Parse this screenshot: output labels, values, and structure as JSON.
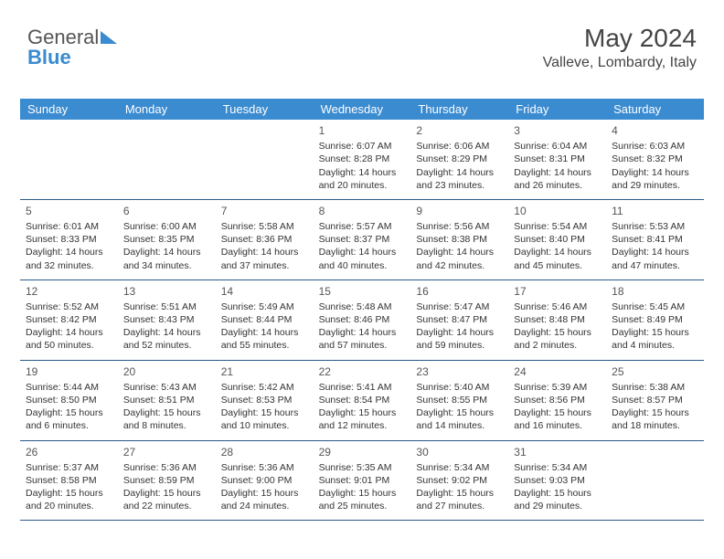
{
  "logo": {
    "text1": "General",
    "text2": "Blue"
  },
  "header": {
    "month": "May 2024",
    "location": "Valleve, Lombardy, Italy"
  },
  "dayNames": [
    "Sunday",
    "Monday",
    "Tuesday",
    "Wednesday",
    "Thursday",
    "Friday",
    "Saturday"
  ],
  "colors": {
    "headerBg": "#3a8bd0",
    "rowBorder": "#2a5a8a"
  },
  "weeks": [
    [
      null,
      null,
      null,
      {
        "n": "1",
        "sr": "6:07 AM",
        "ss": "8:28 PM",
        "dl": "14 hours and 20 minutes."
      },
      {
        "n": "2",
        "sr": "6:06 AM",
        "ss": "8:29 PM",
        "dl": "14 hours and 23 minutes."
      },
      {
        "n": "3",
        "sr": "6:04 AM",
        "ss": "8:31 PM",
        "dl": "14 hours and 26 minutes."
      },
      {
        "n": "4",
        "sr": "6:03 AM",
        "ss": "8:32 PM",
        "dl": "14 hours and 29 minutes."
      }
    ],
    [
      {
        "n": "5",
        "sr": "6:01 AM",
        "ss": "8:33 PM",
        "dl": "14 hours and 32 minutes."
      },
      {
        "n": "6",
        "sr": "6:00 AM",
        "ss": "8:35 PM",
        "dl": "14 hours and 34 minutes."
      },
      {
        "n": "7",
        "sr": "5:58 AM",
        "ss": "8:36 PM",
        "dl": "14 hours and 37 minutes."
      },
      {
        "n": "8",
        "sr": "5:57 AM",
        "ss": "8:37 PM",
        "dl": "14 hours and 40 minutes."
      },
      {
        "n": "9",
        "sr": "5:56 AM",
        "ss": "8:38 PM",
        "dl": "14 hours and 42 minutes."
      },
      {
        "n": "10",
        "sr": "5:54 AM",
        "ss": "8:40 PM",
        "dl": "14 hours and 45 minutes."
      },
      {
        "n": "11",
        "sr": "5:53 AM",
        "ss": "8:41 PM",
        "dl": "14 hours and 47 minutes."
      }
    ],
    [
      {
        "n": "12",
        "sr": "5:52 AM",
        "ss": "8:42 PM",
        "dl": "14 hours and 50 minutes."
      },
      {
        "n": "13",
        "sr": "5:51 AM",
        "ss": "8:43 PM",
        "dl": "14 hours and 52 minutes."
      },
      {
        "n": "14",
        "sr": "5:49 AM",
        "ss": "8:44 PM",
        "dl": "14 hours and 55 minutes."
      },
      {
        "n": "15",
        "sr": "5:48 AM",
        "ss": "8:46 PM",
        "dl": "14 hours and 57 minutes."
      },
      {
        "n": "16",
        "sr": "5:47 AM",
        "ss": "8:47 PM",
        "dl": "14 hours and 59 minutes."
      },
      {
        "n": "17",
        "sr": "5:46 AM",
        "ss": "8:48 PM",
        "dl": "15 hours and 2 minutes."
      },
      {
        "n": "18",
        "sr": "5:45 AM",
        "ss": "8:49 PM",
        "dl": "15 hours and 4 minutes."
      }
    ],
    [
      {
        "n": "19",
        "sr": "5:44 AM",
        "ss": "8:50 PM",
        "dl": "15 hours and 6 minutes."
      },
      {
        "n": "20",
        "sr": "5:43 AM",
        "ss": "8:51 PM",
        "dl": "15 hours and 8 minutes."
      },
      {
        "n": "21",
        "sr": "5:42 AM",
        "ss": "8:53 PM",
        "dl": "15 hours and 10 minutes."
      },
      {
        "n": "22",
        "sr": "5:41 AM",
        "ss": "8:54 PM",
        "dl": "15 hours and 12 minutes."
      },
      {
        "n": "23",
        "sr": "5:40 AM",
        "ss": "8:55 PM",
        "dl": "15 hours and 14 minutes."
      },
      {
        "n": "24",
        "sr": "5:39 AM",
        "ss": "8:56 PM",
        "dl": "15 hours and 16 minutes."
      },
      {
        "n": "25",
        "sr": "5:38 AM",
        "ss": "8:57 PM",
        "dl": "15 hours and 18 minutes."
      }
    ],
    [
      {
        "n": "26",
        "sr": "5:37 AM",
        "ss": "8:58 PM",
        "dl": "15 hours and 20 minutes."
      },
      {
        "n": "27",
        "sr": "5:36 AM",
        "ss": "8:59 PM",
        "dl": "15 hours and 22 minutes."
      },
      {
        "n": "28",
        "sr": "5:36 AM",
        "ss": "9:00 PM",
        "dl": "15 hours and 24 minutes."
      },
      {
        "n": "29",
        "sr": "5:35 AM",
        "ss": "9:01 PM",
        "dl": "15 hours and 25 minutes."
      },
      {
        "n": "30",
        "sr": "5:34 AM",
        "ss": "9:02 PM",
        "dl": "15 hours and 27 minutes."
      },
      {
        "n": "31",
        "sr": "5:34 AM",
        "ss": "9:03 PM",
        "dl": "15 hours and 29 minutes."
      },
      null
    ]
  ],
  "labels": {
    "sunrise": "Sunrise: ",
    "sunset": "Sunset: ",
    "daylight": "Daylight: "
  }
}
